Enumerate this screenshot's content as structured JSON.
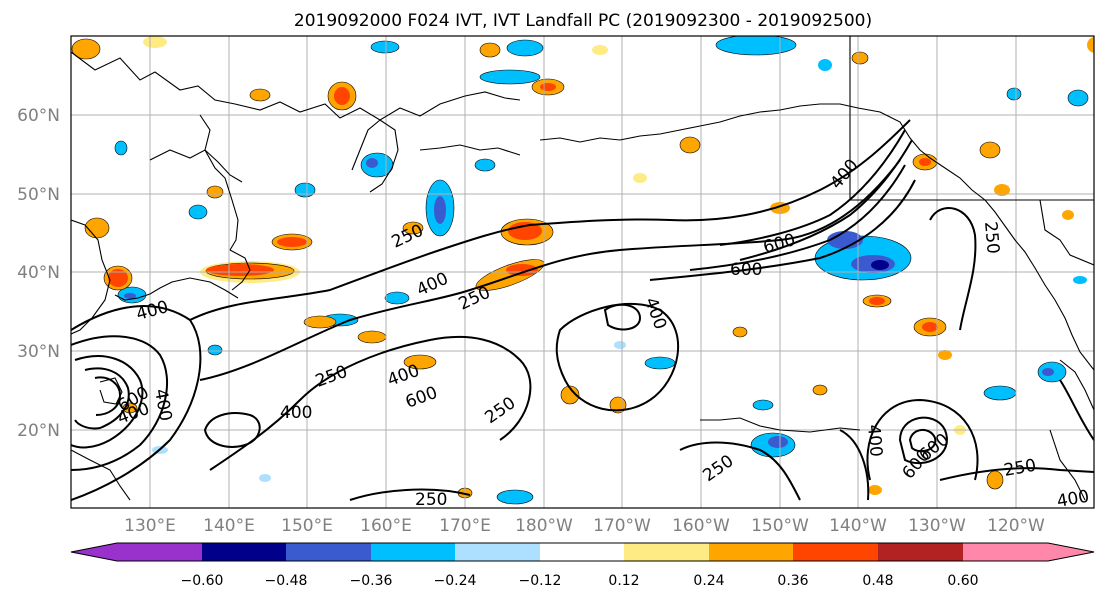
{
  "title": "2019092000 F024 IVT, IVT Landfall PC (2019092300 - 2019092500)",
  "lat_labels": [
    "60°N",
    "50°N",
    "40°N",
    "30°N",
    "20°N"
  ],
  "lon_labels": [
    "130°E",
    "140°E",
    "150°E",
    "160°E",
    "170°E",
    "180°W",
    "170°W",
    "160°W",
    "150°W",
    "140°W",
    "130°W",
    "120°W"
  ],
  "colorbar": {
    "colors": [
      "#9932CC",
      "#00008B",
      "#3A5BD0",
      "#00BFFF",
      "#ADE0FF",
      "#FFFFFF",
      "#FFEB84",
      "#FFA500",
      "#FF4500",
      "#B22222",
      "#FF88AA"
    ],
    "ticks": [
      "−0.60",
      "−0.48",
      "−0.36",
      "−0.24",
      "−0.12",
      "0.12",
      "0.24",
      "0.36",
      "0.48",
      "0.60"
    ]
  },
  "contour_labels": [
    "250",
    "400",
    "600",
    "250",
    "400",
    "600",
    "400",
    "250",
    "400",
    "600",
    "400",
    "250",
    "600",
    "400",
    "400",
    "250",
    "250",
    "400",
    "600",
    "250",
    "250",
    "400",
    "600",
    "400"
  ],
  "colors": {
    "positive_light": "#FFEB84",
    "positive_mid": "#FFA500",
    "positive_strong": "#FF4500",
    "negative_light": "#ADE0FF",
    "negative_mid": "#00BFFF",
    "negative_strong": "#3A5BD0",
    "negative_max": "#00008B"
  }
}
